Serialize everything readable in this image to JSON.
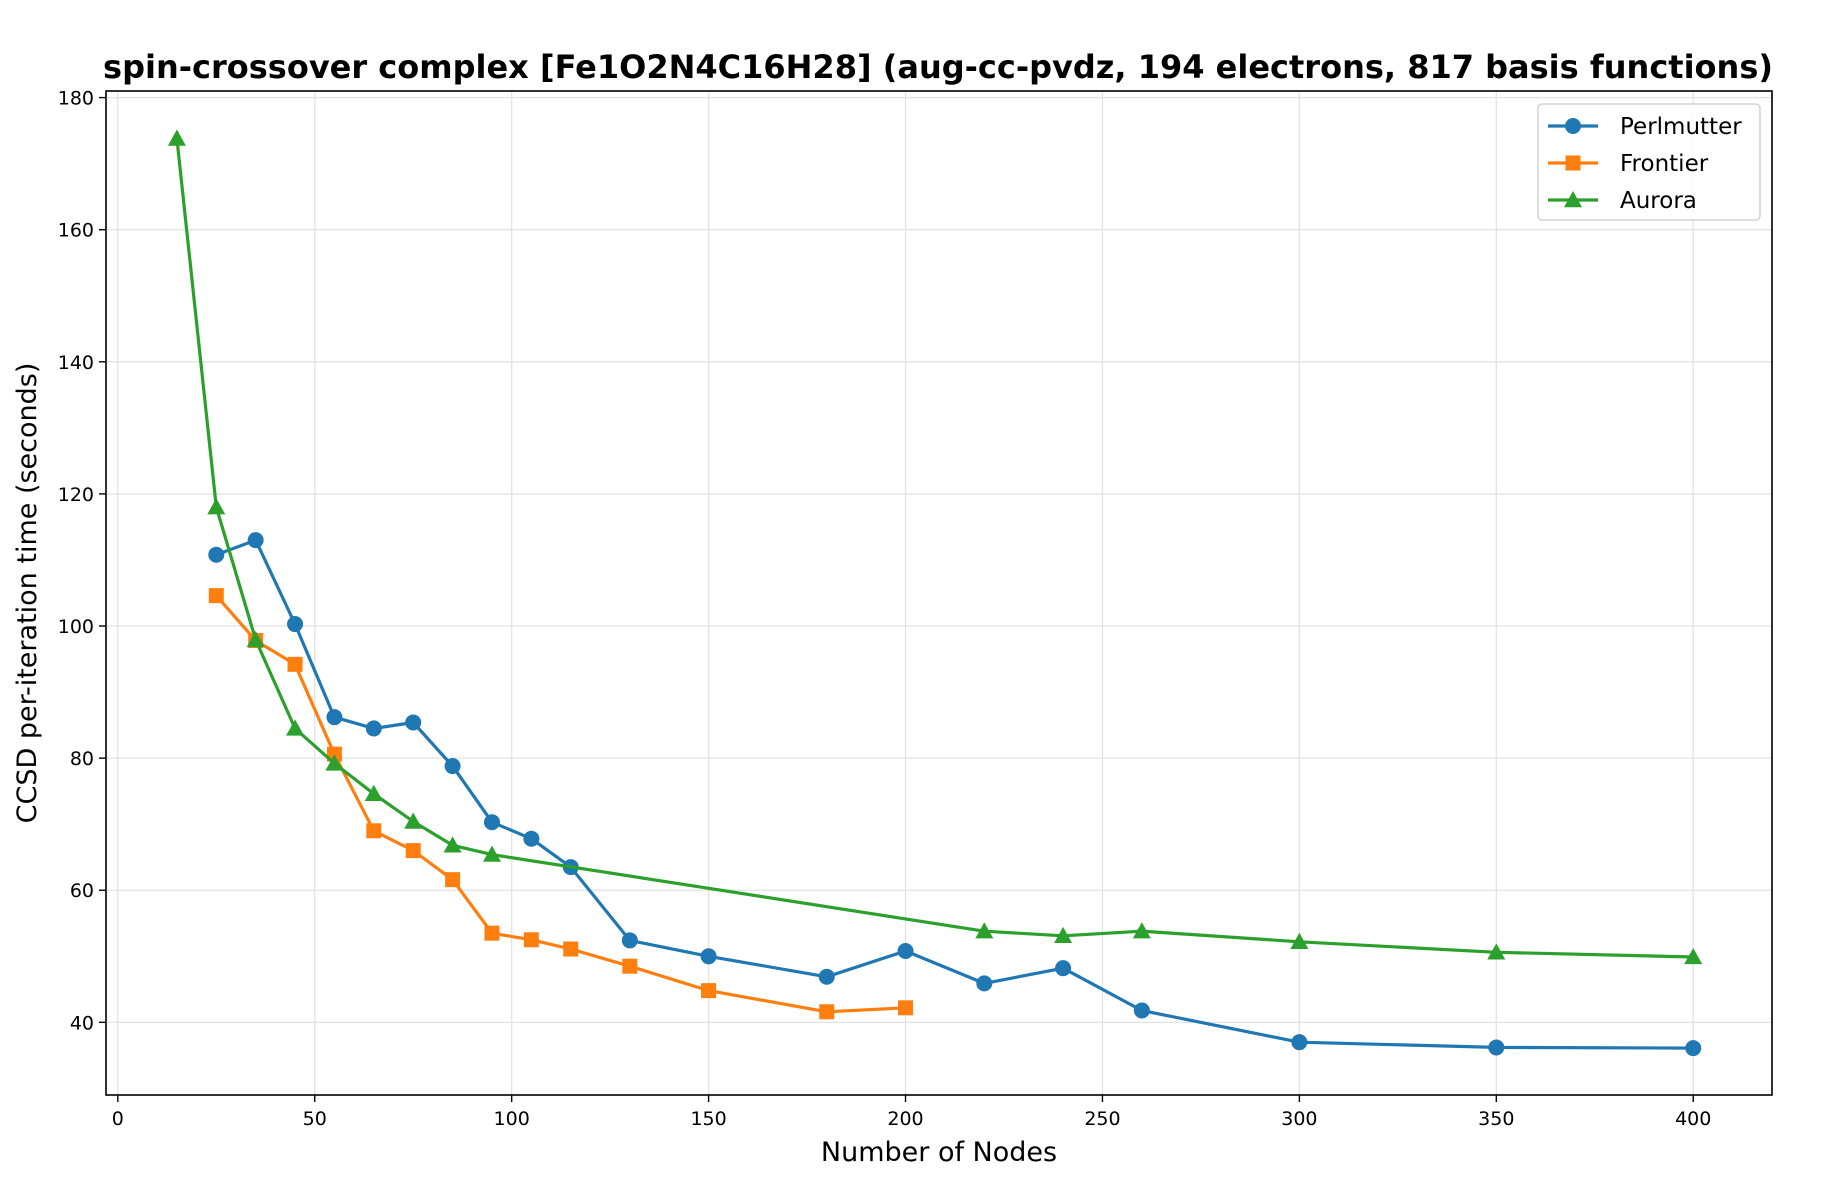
{
  "chart_data": {
    "type": "line",
    "title": "spin-crossover complex [Fe1O2N4C16H28] (aug-cc-pvdz, 194 electrons, 817 basis functions)",
    "xlabel": "Number of Nodes",
    "ylabel": "CCSD per-iteration time (seconds)",
    "xlim": [
      -3,
      420
    ],
    "ylim": [
      29,
      181
    ],
    "xticks": [
      0,
      50,
      100,
      150,
      200,
      250,
      300,
      350,
      400
    ],
    "yticks": [
      40,
      60,
      80,
      100,
      120,
      140,
      160,
      180
    ],
    "grid": true,
    "legend_position": "top-right",
    "series": [
      {
        "name": "Perlmutter",
        "color": "#1f77b4",
        "marker": "circle",
        "x": [
          25,
          35,
          45,
          55,
          65,
          75,
          85,
          95,
          105,
          115,
          130,
          150,
          180,
          200,
          220,
          240,
          260,
          300,
          350,
          400
        ],
        "values": [
          110.8,
          113.0,
          100.3,
          86.2,
          84.5,
          85.4,
          78.8,
          70.3,
          67.8,
          63.5,
          52.4,
          50.0,
          46.9,
          50.8,
          45.9,
          48.2,
          41.8,
          37.0,
          36.2,
          36.1
        ]
      },
      {
        "name": "Frontier",
        "color": "#ff7f0e",
        "marker": "square",
        "x": [
          25,
          35,
          45,
          55,
          65,
          75,
          85,
          95,
          105,
          115,
          130,
          150,
          180,
          200
        ],
        "values": [
          104.6,
          97.8,
          94.2,
          80.6,
          69.0,
          66.0,
          61.6,
          53.5,
          52.5,
          51.1,
          48.5,
          44.8,
          41.6,
          42.2
        ]
      },
      {
        "name": "Aurora",
        "color": "#2ca02c",
        "marker": "triangle",
        "x": [
          15,
          25,
          35,
          45,
          55,
          65,
          75,
          85,
          95,
          220,
          240,
          260,
          300,
          350,
          400
        ],
        "values": [
          173.8,
          118.0,
          97.9,
          84.5,
          79.2,
          74.6,
          70.4,
          66.8,
          65.4,
          53.8,
          53.1,
          53.8,
          52.2,
          50.6,
          49.9
        ]
      }
    ]
  }
}
